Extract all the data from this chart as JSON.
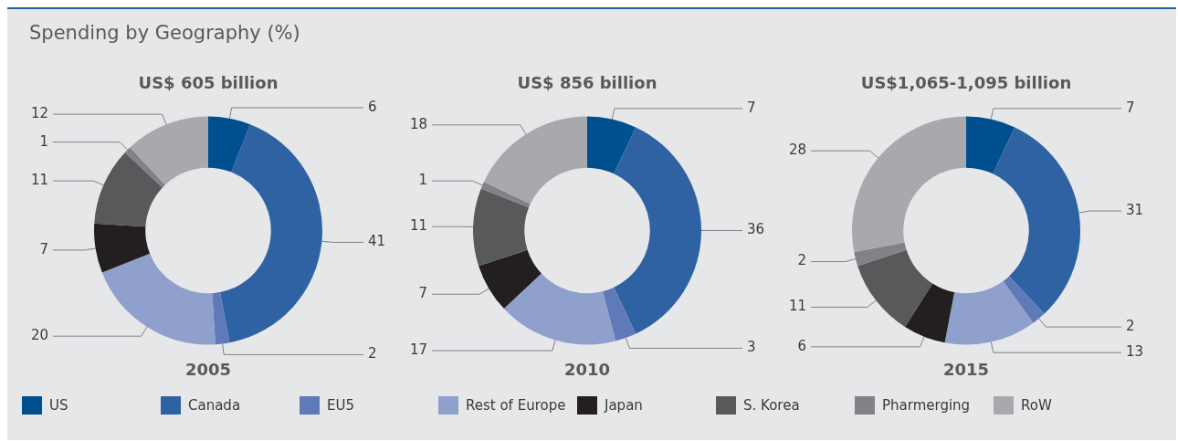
{
  "chart_data": [
    {
      "type": "other",
      "title": "Spending by Geography (%)"
    },
    {
      "type": "donut",
      "title": "US$ 605 billion",
      "xlabel": "2005",
      "categories": [
        "US",
        "Canada",
        "EU5",
        "Rest of Europe",
        "Japan",
        "S. Korea",
        "Pharmerging",
        "RoW"
      ],
      "values": [
        6,
        41,
        2,
        20,
        7,
        11,
        1,
        12
      ],
      "colors": [
        "#00508f",
        "#2f62a3",
        "#6079b8",
        "#8fa0cc",
        "#231f20",
        "#58595b",
        "#808285",
        "#a7a9ac"
      ],
      "data_labels": true,
      "legend": "bottom"
    },
    {
      "type": "donut",
      "title": "US$ 856 billion",
      "xlabel": "2010",
      "categories": [
        null,
        null,
        null,
        null,
        null,
        null,
        null,
        null
      ],
      "values": [
        7,
        36,
        3,
        17,
        7,
        11,
        1,
        18
      ],
      "colors": [
        "#00508f",
        "#2f62a3",
        "#6079b8",
        "#8fa0cc",
        "#231f20",
        "#58595b",
        "#808285",
        "#a7a9ac"
      ],
      "data_labels": true
    },
    {
      "type": "donut",
      "title": "US$1,065-1,095 billion",
      "xlabel": "2015",
      "categories": [
        null,
        null,
        null,
        null,
        null,
        null,
        null,
        null
      ],
      "values": [
        7,
        31,
        2,
        13,
        6,
        11,
        2,
        28
      ],
      "colors": [
        "#00508f",
        "#2f62a3",
        "#6079b8",
        "#8fa0cc",
        "#231f20",
        "#58595b",
        "#808285",
        "#a7a9ac"
      ],
      "data_labels": true
    }
  ]
}
